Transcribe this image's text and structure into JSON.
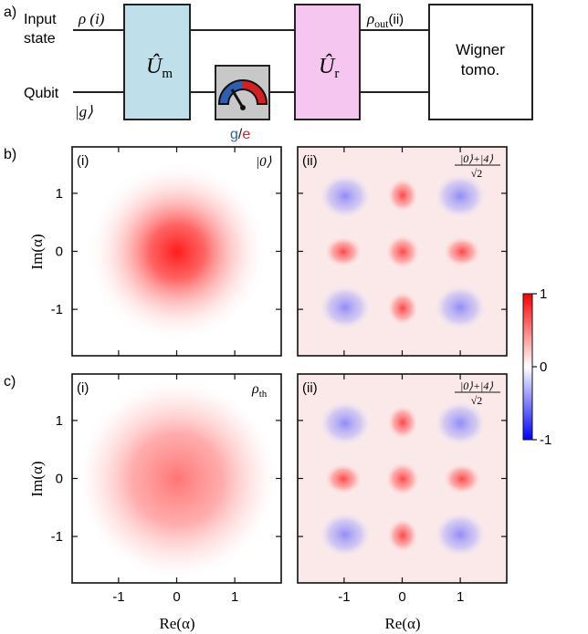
{
  "circuit": {
    "panel_label": "a)",
    "input_line": {
      "label_1": "Input",
      "label_2": "state",
      "symbol": "ρ (i)"
    },
    "qubit_line": {
      "label": "Qubit",
      "state": "|g⟩"
    },
    "gate_measure": {
      "label": "Û",
      "subscript": "m"
    },
    "gate_rotation": {
      "label": "Û",
      "subscript": "r"
    },
    "meter": {
      "g": "g",
      "slash": "/",
      "e": "e",
      "color_g": "#2f5fb3",
      "color_e": "#d42020"
    },
    "output": {
      "symbol": "ρ",
      "subscript": "out",
      "tag": "(ii)"
    },
    "tomography": {
      "line1": "Wigner",
      "line2": "tomo."
    },
    "colors": {
      "measure_box": "#bfe0ea",
      "rotation_box": "#f5c6f0",
      "meter_box": "#c8c8c8"
    }
  },
  "panel_b": {
    "label": "b)",
    "left": {
      "tag": "(i)",
      "state": "|0⟩"
    },
    "right": {
      "tag": "(ii)",
      "num": "|0⟩+|4⟩",
      "den": "√2"
    }
  },
  "panel_c": {
    "label": "c)",
    "left": {
      "tag": "(i)",
      "state": "ρ",
      "state_sub": "th"
    },
    "right": {
      "tag": "(ii)",
      "num": "|0⟩+|4⟩",
      "den": "√2"
    }
  },
  "axes": {
    "xlabel": "Re(α)",
    "ylabel": "Im(α)"
  },
  "chart_data": {
    "type": "heatmap",
    "x_ticks": [
      "-1",
      "0",
      "1"
    ],
    "y_ticks": [
      "1",
      "0",
      "-1"
    ],
    "xlim": [
      -1.8,
      1.8
    ],
    "ylim": [
      -1.8,
      1.8
    ],
    "colorbar": {
      "ticks": [
        "1",
        "0",
        "-1"
      ],
      "range": [
        -1,
        1
      ],
      "colors": [
        "#0000ff",
        "#ffffff",
        "#ff0000"
      ]
    },
    "panels": [
      {
        "row": "b",
        "col": "i",
        "state": "|0⟩",
        "peak": 0.9
      },
      {
        "row": "b",
        "col": "ii",
        "state": "(|0⟩+|4⟩)/√2",
        "peak": 0.6
      },
      {
        "row": "c",
        "col": "i",
        "state": "ρth",
        "peak": 0.55
      },
      {
        "row": "c",
        "col": "ii",
        "state": "(|0⟩+|4⟩)/√2",
        "peak": 0.6
      }
    ]
  }
}
